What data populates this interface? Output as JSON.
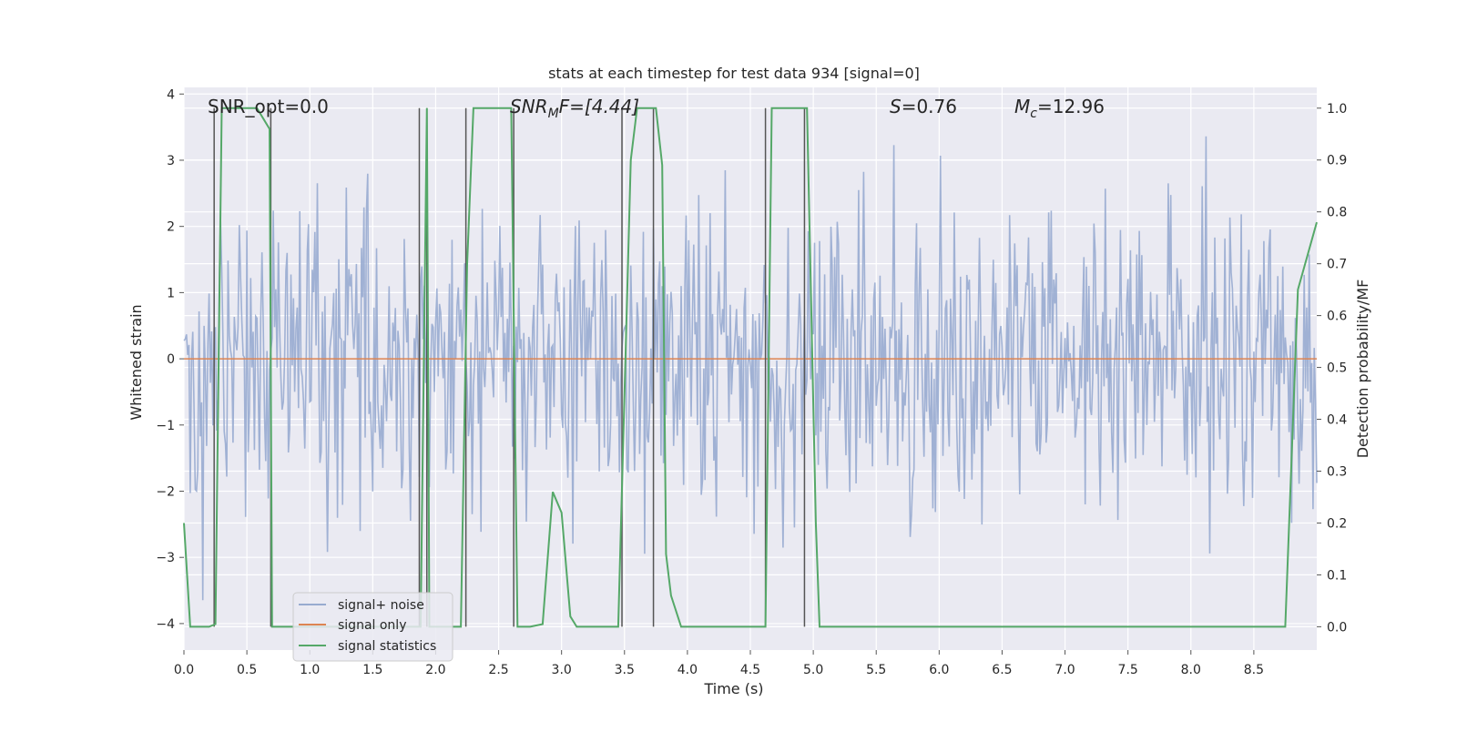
{
  "chart_data": {
    "type": "line",
    "title": "stats at each timestep for test data 934 [signal=0]",
    "xlabel": "Time (s)",
    "ylabel": "Whitened strain",
    "y2label": "Detection probability/MF",
    "xlim": [
      0.0,
      9.0
    ],
    "ylim": [
      -4.4,
      4.1
    ],
    "y2lim": [
      -0.045,
      1.04
    ],
    "x_ticks": [
      0.0,
      0.5,
      1.0,
      1.5,
      2.0,
      2.5,
      3.0,
      3.5,
      4.0,
      4.5,
      5.0,
      5.5,
      6.0,
      6.5,
      7.0,
      7.5,
      8.0,
      8.5
    ],
    "x_tick_labels": [
      "0.0",
      "0.5",
      "1.0",
      "1.5",
      "2.0",
      "2.5",
      "3.0",
      "3.5",
      "4.0",
      "4.5",
      "5.0",
      "5.5",
      "6.0",
      "6.5",
      "7.0",
      "7.5",
      "8.0",
      "8.5"
    ],
    "y_ticks": [
      4,
      3,
      2,
      1,
      0,
      -1,
      -2,
      -3,
      -4
    ],
    "y_tick_labels": [
      "4",
      "3",
      "2",
      "1",
      "0",
      "−1",
      "−2",
      "−3",
      "−4"
    ],
    "y2_ticks": [
      1.0,
      0.9,
      0.8,
      0.7,
      0.6,
      0.5,
      0.4,
      0.3,
      0.2,
      0.1,
      0.0
    ],
    "y2_tick_labels": [
      "1.0",
      "0.9",
      "0.8",
      "0.7",
      "0.6",
      "0.5",
      "0.4",
      "0.3",
      "0.2",
      "0.1",
      "0.0"
    ],
    "grid": true,
    "legend_placement": "lower-left",
    "legend": [
      {
        "label": "signal+ noise",
        "color": "#98abd0"
      },
      {
        "label": "signal only",
        "color": "#dd8452"
      },
      {
        "label": "signal statistics",
        "color": "#55a868"
      }
    ],
    "annotations": {
      "snr_opt": "SNR_opt=0.0",
      "snr_mf_name": "SNR",
      "snr_mf_sub": "M",
      "snr_mf_rest": "F=[4.44]",
      "s_name": "S",
      "s_value": "=0.76",
      "mc_name": "M",
      "mc_sub": "c",
      "mc_value": "=12.96"
    },
    "series": [
      {
        "name": "signal+ noise",
        "note": "whitened strain noise trace, roughly Gaussian, amplitude about ±3.5",
        "sample_count": 900,
        "peak_max": 3.7,
        "peak_min": -4.0
      },
      {
        "name": "signal only",
        "x": [
          0.0,
          9.0
        ],
        "y": [
          0.0,
          0.0
        ]
      },
      {
        "name": "signal statistics",
        "axis": "right",
        "x": [
          0.0,
          0.05,
          0.2,
          0.25,
          0.3,
          0.58,
          0.63,
          0.68,
          0.7,
          0.75,
          1.5,
          1.88,
          1.93,
          1.95,
          2.0,
          2.2,
          2.25,
          2.3,
          2.6,
          2.65,
          2.75,
          2.85,
          2.93,
          3.0,
          3.07,
          3.12,
          3.3,
          3.45,
          3.55,
          3.6,
          3.75,
          3.8,
          3.83,
          3.87,
          3.95,
          4.5,
          4.62,
          4.67,
          4.7,
          4.95,
          5.02,
          5.05,
          5.07,
          6.0,
          7.0,
          8.0,
          8.75,
          8.85,
          9.0
        ],
        "y": [
          0.2,
          0.0,
          0.0,
          0.005,
          1.0,
          1.0,
          0.98,
          0.96,
          0.0,
          0.0,
          0.0,
          0.0,
          1.0,
          0.0,
          0.0,
          0.0,
          0.7,
          1.0,
          1.0,
          0.0,
          0.0,
          0.005,
          0.26,
          0.22,
          0.02,
          0.0,
          0.0,
          0.0,
          0.9,
          1.0,
          1.0,
          0.89,
          0.14,
          0.06,
          0.0,
          0.0,
          0.0,
          1.0,
          1.0,
          1.0,
          0.2,
          0.0,
          0.0,
          0.0,
          0.0,
          0.0,
          0.0,
          0.65,
          0.78
        ]
      }
    ],
    "vertical_markers_x": [
      0.24,
      0.69,
      1.87,
      1.93,
      2.24,
      2.62,
      3.48,
      3.73,
      4.62,
      4.93
    ]
  }
}
